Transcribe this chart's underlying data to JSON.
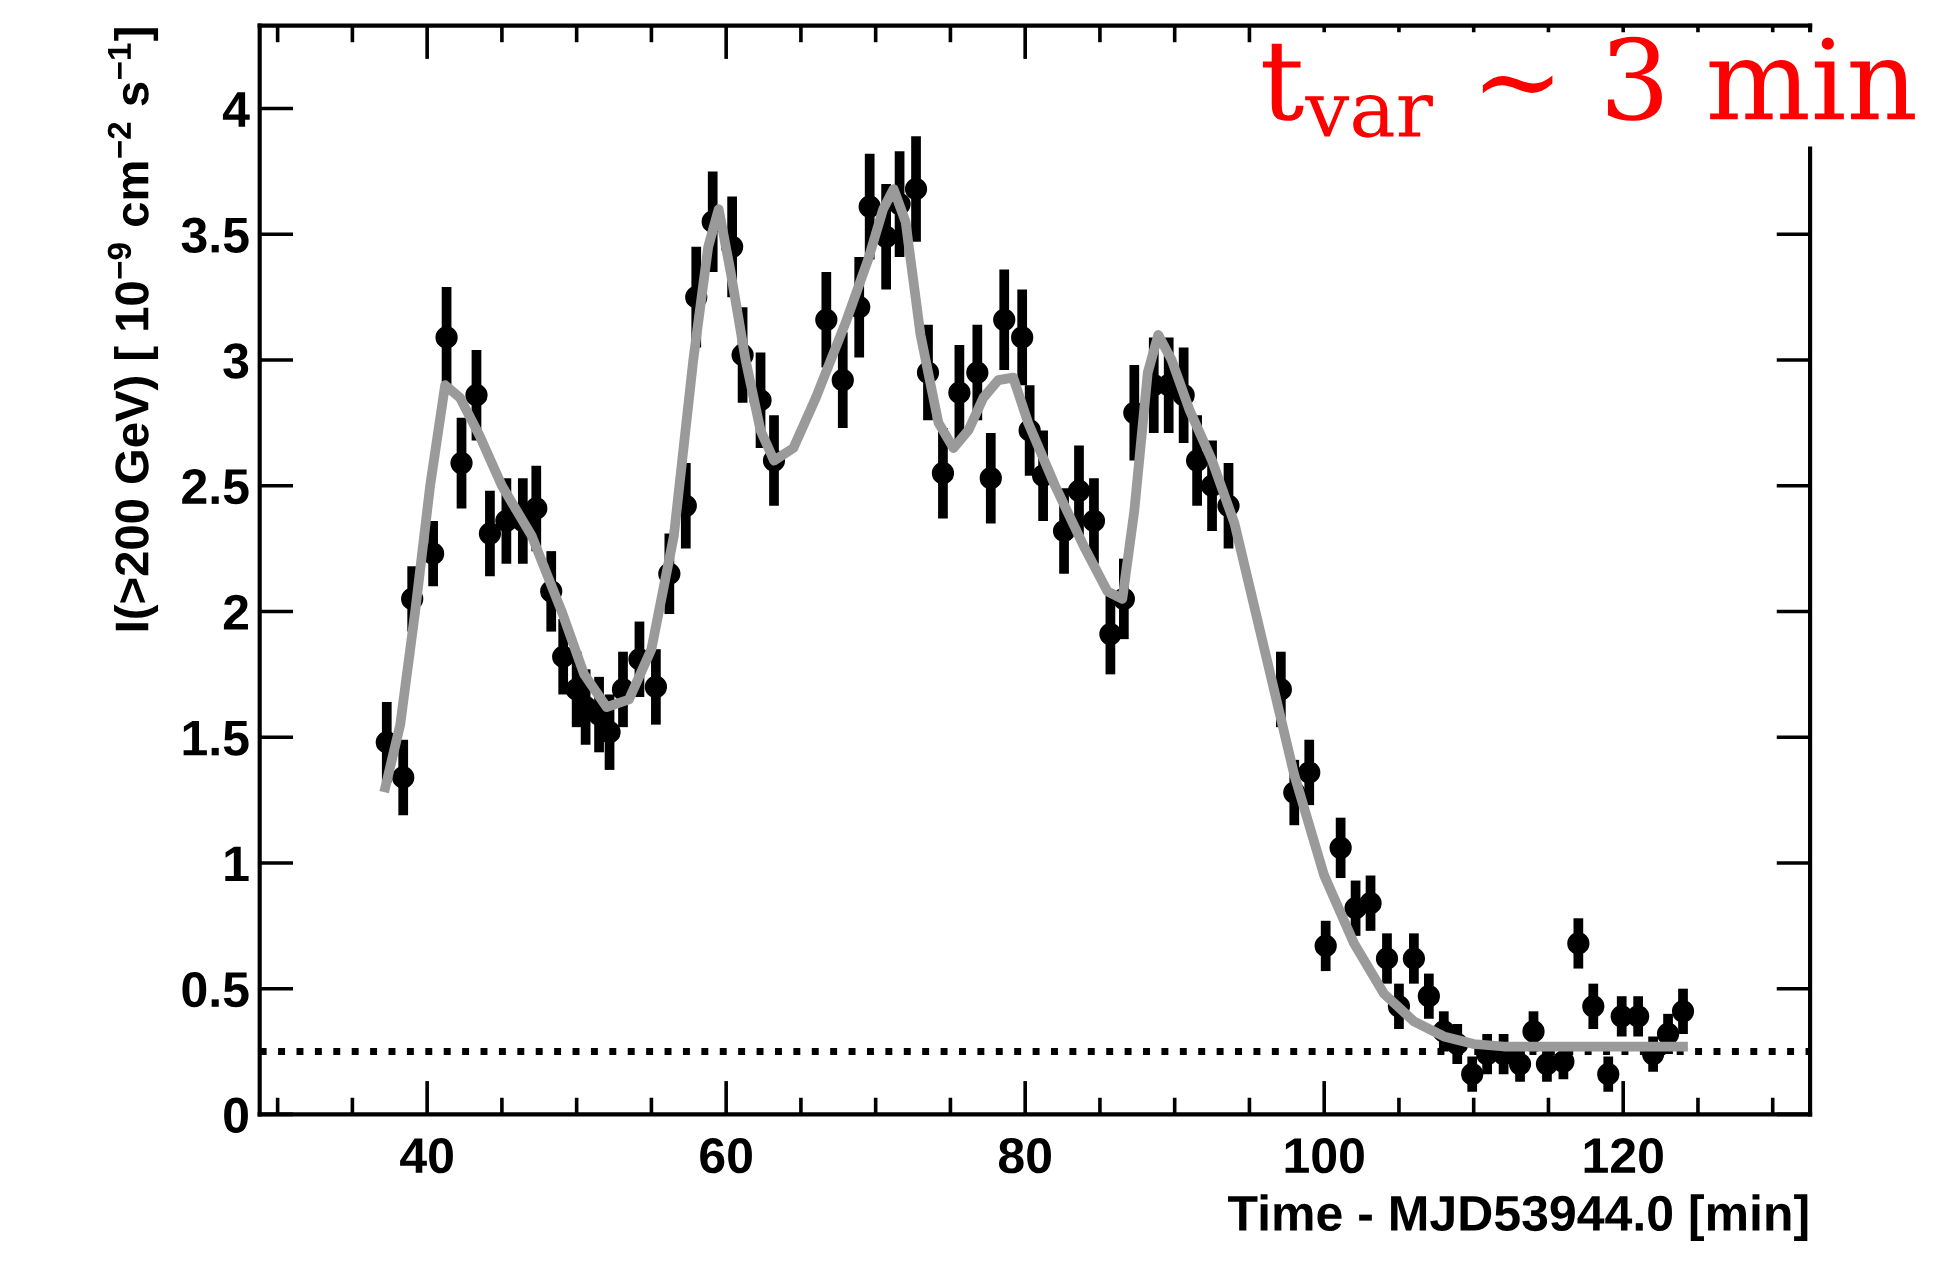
{
  "chart_data": {
    "type": "scatter",
    "xlabel": "Time - MJD53944.0 [min]",
    "ylabel": "I(>200 GeV) [ 10$^{−9}$ cm$^{−2}$ s$^{−1}$]",
    "annotations": [
      "t$_{var}$ ∼ 3 min"
    ],
    "xlim": [
      28.8,
      132.5
    ],
    "ylim": [
      0,
      4.33
    ],
    "xticks": [
      {
        "value": 30,
        "label": null
      },
      {
        "value": 35,
        "label": null
      },
      40,
      {
        "value": 45,
        "label": null
      },
      {
        "value": 50,
        "label": null
      },
      {
        "value": 55,
        "label": null
      },
      60,
      {
        "value": 65,
        "label": null
      },
      {
        "value": 70,
        "label": null
      },
      {
        "value": 75,
        "label": null
      },
      80,
      {
        "value": 85,
        "label": null
      },
      {
        "value": 90,
        "label": null
      },
      {
        "value": 95,
        "label": null
      },
      100,
      {
        "value": 105,
        "label": null
      },
      {
        "value": 110,
        "label": null
      },
      {
        "value": 115,
        "label": null
      },
      120,
      {
        "value": 125,
        "label": null
      },
      {
        "value": 130,
        "label": null
      }
    ],
    "yticks": [
      0,
      0.5,
      1,
      1.5,
      2,
      2.5,
      3,
      3.5,
      4
    ],
    "grid": false,
    "legend": false,
    "marker": "circle",
    "ref_lines": [
      {
        "axis": "y",
        "value": 0.25,
        "color": "#000000",
        "line_style": "dotted"
      }
    ],
    "series": [
      {
        "type": "scatter",
        "color": "#000000",
        "x": [
          37.3,
          38.4,
          39.0,
          40.4,
          41.3,
          42.3,
          43.3,
          44.2,
          45.3,
          46.4,
          47.3,
          48.3,
          49.1,
          50.0,
          50.6,
          51.5,
          52.2,
          53.1,
          54.2,
          55.3,
          56.2,
          57.3,
          58.0,
          59.1,
          60.4,
          61.1,
          62.3,
          63.2,
          66.7,
          67.8,
          68.9,
          69.6,
          70.7,
          71.6,
          72.7,
          73.5,
          74.5,
          75.6,
          76.8,
          77.7,
          78.6,
          79.8,
          80.3,
          81.2,
          82.6,
          83.6,
          84.6,
          85.7,
          86.6,
          87.3,
          88.6,
          89.6,
          90.6,
          91.5,
          92.5,
          93.6,
          97.1,
          98.0,
          99.0,
          100.1,
          101.1,
          102.1,
          103.1,
          104.2,
          105.0,
          106.0,
          107.0,
          108.0,
          108.9,
          109.9,
          110.9,
          112.0,
          113.1,
          114.0,
          114.9,
          116.0,
          117.0,
          118.0,
          119.0,
          119.9,
          121.0,
          122.0,
          123.0,
          124.0
        ],
        "values": [
          1.48,
          1.34,
          2.05,
          2.23,
          3.09,
          2.59,
          2.86,
          2.31,
          2.36,
          2.36,
          2.41,
          2.08,
          1.82,
          1.69,
          1.62,
          1.59,
          1.52,
          1.69,
          1.81,
          1.7,
          2.15,
          2.42,
          3.25,
          3.55,
          3.45,
          3.02,
          2.84,
          2.6,
          3.16,
          2.92,
          3.21,
          3.61,
          3.49,
          3.62,
          3.68,
          2.95,
          2.55,
          2.87,
          2.95,
          2.53,
          3.16,
          3.09,
          2.72,
          2.54,
          2.32,
          2.48,
          2.36,
          1.91,
          2.05,
          2.79,
          2.9,
          2.9,
          2.86,
          2.6,
          2.5,
          2.42,
          1.69,
          1.28,
          1.36,
          0.67,
          1.06,
          0.82,
          0.84,
          0.62,
          0.43,
          0.62,
          0.47,
          0.33,
          0.28,
          0.16,
          0.24,
          0.24,
          0.2,
          0.33,
          0.2,
          0.21,
          0.68,
          0.43,
          0.16,
          0.39,
          0.39,
          0.24,
          0.32,
          0.41
        ],
        "errors": [
          0.16,
          0.15,
          0.13,
          0.13,
          0.2,
          0.18,
          0.18,
          0.17,
          0.17,
          0.17,
          0.17,
          0.16,
          0.15,
          0.15,
          0.15,
          0.15,
          0.15,
          0.15,
          0.15,
          0.15,
          0.16,
          0.17,
          0.2,
          0.2,
          0.2,
          0.19,
          0.19,
          0.18,
          0.19,
          0.19,
          0.2,
          0.21,
          0.21,
          0.21,
          0.21,
          0.19,
          0.18,
          0.19,
          0.19,
          0.18,
          0.2,
          0.19,
          0.18,
          0.18,
          0.17,
          0.18,
          0.17,
          0.16,
          0.16,
          0.19,
          0.19,
          0.19,
          0.19,
          0.18,
          0.18,
          0.17,
          0.15,
          0.13,
          0.13,
          0.1,
          0.12,
          0.11,
          0.11,
          0.1,
          0.09,
          0.1,
          0.09,
          0.08,
          0.08,
          0.07,
          0.08,
          0.08,
          0.07,
          0.08,
          0.07,
          0.07,
          0.1,
          0.09,
          0.07,
          0.08,
          0.08,
          0.07,
          0.08,
          0.09
        ]
      },
      {
        "type": "line",
        "color": "#9a9a9a",
        "marker": "none",
        "line_style": "solid",
        "x": [
          37.2,
          38.2,
          39.2,
          40.2,
          41.2,
          42.2,
          43.5,
          45,
          47,
          49,
          50.5,
          52,
          53.5,
          55,
          56.5,
          57.8,
          58.8,
          59.5,
          60.3,
          61.3,
          62.3,
          63.2,
          64.5,
          66,
          68,
          69.5,
          70.5,
          71.2,
          72,
          73,
          74.2,
          75.2,
          76.2,
          77.2,
          78.2,
          79.2,
          80.2,
          82,
          84,
          85.5,
          86.5,
          87.3,
          88.2,
          88.9,
          89.8,
          91,
          92.5,
          94,
          96,
          98,
          100,
          102,
          104,
          106,
          108,
          110,
          112,
          116,
          120,
          124
        ],
        "values": [
          1.3,
          1.55,
          2.0,
          2.5,
          2.9,
          2.85,
          2.7,
          2.5,
          2.3,
          2.0,
          1.75,
          1.62,
          1.65,
          1.85,
          2.3,
          3.0,
          3.45,
          3.6,
          3.35,
          3.0,
          2.72,
          2.6,
          2.65,
          2.85,
          3.15,
          3.4,
          3.6,
          3.68,
          3.55,
          3.1,
          2.75,
          2.65,
          2.72,
          2.85,
          2.92,
          2.93,
          2.75,
          2.5,
          2.25,
          2.08,
          2.05,
          2.4,
          2.95,
          3.1,
          3.0,
          2.8,
          2.6,
          2.35,
          1.85,
          1.35,
          0.95,
          0.68,
          0.48,
          0.37,
          0.31,
          0.28,
          0.27,
          0.27,
          0.27,
          0.27
        ]
      }
    ]
  }
}
